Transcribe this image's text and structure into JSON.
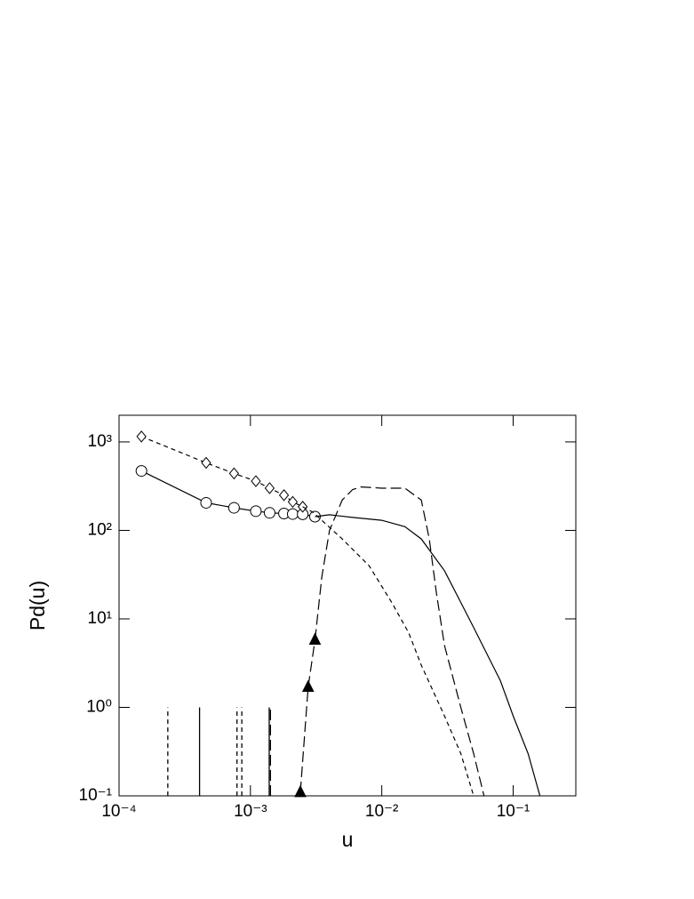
{
  "chart_data": {
    "type": "line",
    "x_label": "u",
    "y_label": "Pd(u)",
    "log_x": true,
    "log_y": true,
    "xlim": [
      0.0001,
      0.3
    ],
    "ylim": [
      0.1,
      2000
    ],
    "xticks": [
      {
        "value": 0.0001,
        "label": "10⁻⁴"
      },
      {
        "value": 0.001,
        "label": "10⁻³"
      },
      {
        "value": 0.01,
        "label": "10⁻²"
      },
      {
        "value": 0.1,
        "label": "10⁻¹"
      }
    ],
    "yticks": [
      {
        "value": 0.1,
        "label": "10⁻¹"
      },
      {
        "value": 1,
        "label": "10⁰"
      },
      {
        "value": 10,
        "label": "10¹"
      },
      {
        "value": 100,
        "label": "10²"
      },
      {
        "value": 1000,
        "label": "10³"
      }
    ],
    "series": [
      {
        "color": "#000000",
        "dash": "none",
        "marker": "circle",
        "x": [
          0.000148,
          0.00046,
          0.00075,
          0.0011,
          0.0014,
          0.0018,
          0.0021,
          0.0025,
          0.0031
        ],
        "values": [
          470,
          205,
          180,
          165,
          158,
          155,
          153,
          152,
          143
        ]
      },
      {
        "color": "#000000",
        "dash": "none",
        "marker": "none",
        "x": [
          0.0031,
          0.004,
          0.006,
          0.01,
          0.015,
          0.02,
          0.03,
          0.05,
          0.08,
          0.1,
          0.13,
          0.16
        ],
        "values": [
          143,
          150,
          140,
          130,
          110,
          80,
          35,
          8,
          2,
          0.8,
          0.3,
          0.1
        ]
      },
      {
        "color": "#000000",
        "dash": "5 4",
        "marker": "diamond",
        "x": [
          0.000148,
          0.00046,
          0.00075,
          0.0011,
          0.0014,
          0.0018,
          0.0021,
          0.0025
        ],
        "values": [
          1150,
          580,
          440,
          360,
          300,
          250,
          210,
          185
        ]
      },
      {
        "color": "#000000",
        "dash": "5 4",
        "marker": "none",
        "x": [
          0.0025,
          0.003,
          0.005,
          0.008,
          0.012,
          0.016,
          0.02,
          0.03,
          0.04,
          0.05
        ],
        "values": [
          185,
          160,
          80,
          40,
          15,
          7,
          3,
          0.8,
          0.3,
          0.1
        ]
      },
      {
        "color": "#000000",
        "dash": "12 5",
        "marker": "triangle",
        "x": [
          0.0024,
          0.00275,
          0.0031
        ],
        "values": [
          0.11,
          1.7,
          5.8
        ]
      },
      {
        "color": "#000000",
        "dash": "12 5",
        "marker": "none",
        "x": [
          0.0031,
          0.0035,
          0.004,
          0.005,
          0.006,
          0.007,
          0.01,
          0.015,
          0.02,
          0.023,
          0.026,
          0.03,
          0.04,
          0.05,
          0.06
        ],
        "values": [
          5.8,
          30,
          100,
          220,
          290,
          310,
          300,
          300,
          220,
          80,
          20,
          5,
          1,
          0.3,
          0.1
        ]
      }
    ],
    "spikes": [
      {
        "x": 0.000235,
        "value": 1,
        "dash": "5 4"
      },
      {
        "x": 0.00041,
        "value": 1,
        "dash": "none"
      },
      {
        "x": 0.00079,
        "value": 1,
        "dash": "5 4"
      },
      {
        "x": 0.00086,
        "value": 1,
        "dash": "5 4"
      },
      {
        "x": 0.00139,
        "value": 1,
        "dash": "none"
      },
      {
        "x": 0.00142,
        "value": 1,
        "dash": "12 5"
      }
    ]
  }
}
